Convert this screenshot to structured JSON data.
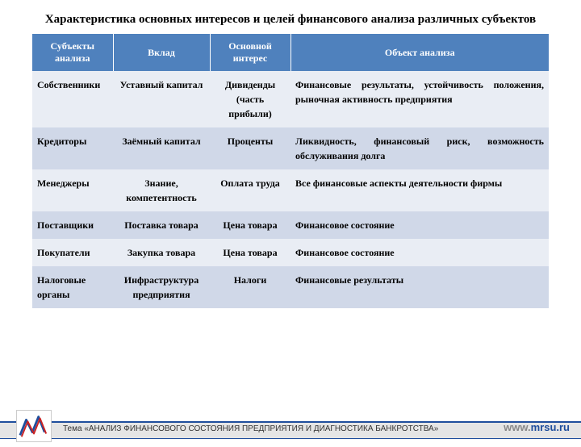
{
  "title": "Характеристика основных интересов и целей финансового анализа различных субъектов",
  "table": {
    "col_widths": [
      "100px",
      "120px",
      "100px",
      "320px"
    ],
    "header_bg": "#4f81bd",
    "header_color": "#ffffff",
    "row_a_bg": "#e9edf4",
    "row_b_bg": "#d0d8e8",
    "font_size": 12,
    "columns": [
      "Субъекты анализа",
      "Вклад",
      "Основной интерес",
      "Объект анализа"
    ],
    "rows": [
      {
        "cells": [
          "Собственники",
          "Уставный капитал",
          "Дивиденды (часть прибыли)",
          "Финансовые результаты, устойчивость положения, рыночная активность предприятия"
        ],
        "c3class": "just"
      },
      {
        "cells": [
          "Кредиторы",
          "Заёмный капитал",
          "Проценты",
          "Ликвидность, финансовый риск, возможность обслуживания долга"
        ],
        "c3class": "just"
      },
      {
        "cells": [
          "Менеджеры",
          "Знание, компетентность",
          "Оплата труда",
          "Все финансовые аспекты деятельности фирмы"
        ],
        "c3class": "just"
      },
      {
        "cells": [
          "Поставщики",
          "Поставка товара",
          "Цена товара",
          "Финансовое состояние"
        ],
        "c3class": "left"
      },
      {
        "cells": [
          "Покупатели",
          "Закупка товара",
          "Цена товара",
          "Финансовое состояние"
        ],
        "c3class": "left"
      },
      {
        "cells": [
          "Налоговые органы",
          "Инфраструктура предприятия",
          "Налоги",
          "Финансовые результаты"
        ],
        "c3class": "left"
      }
    ]
  },
  "footer": {
    "text": "Тема «АНАЛИЗ ФИНАНСОВОГО СОСТОЯНИЯ ПРЕДПРИЯТИЯ И ДИАГНОСТИКА БАНКРОТСТВА»",
    "site_prefix": "www.",
    "site_domain": "mrsu.ru",
    "bar_color": "#1f4e9c",
    "bg_color": "#e5e5e5"
  }
}
